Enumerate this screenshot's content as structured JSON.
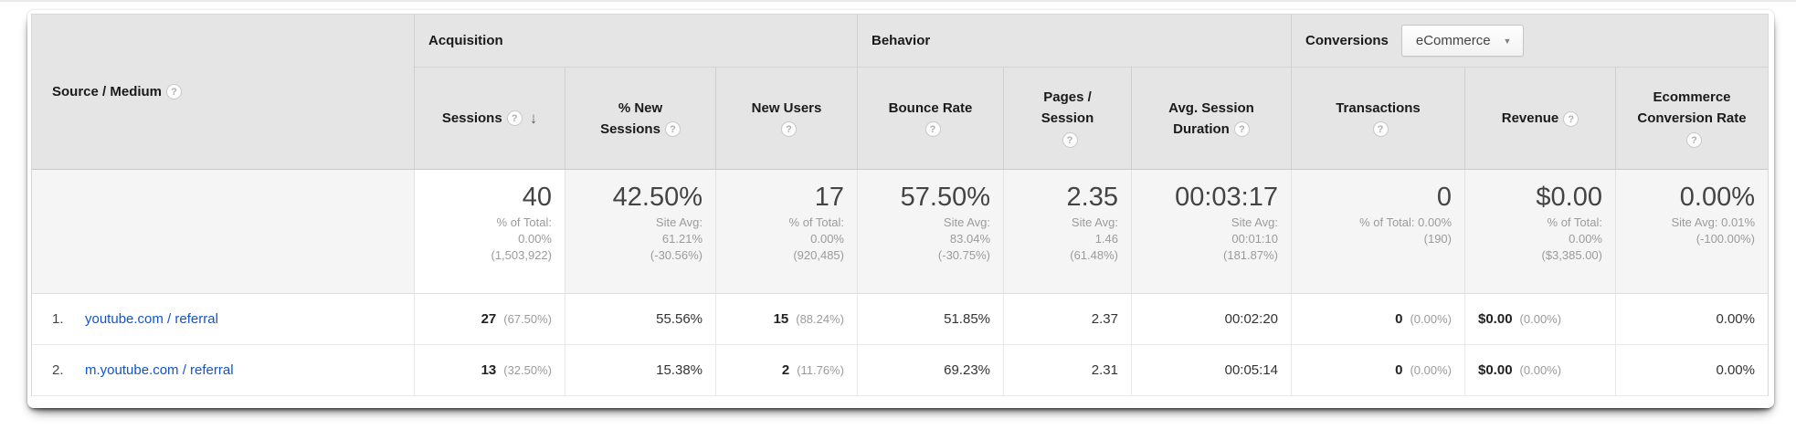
{
  "icons": {
    "help": "?",
    "sort_descending": "↓",
    "dropdown_arrow": "▼"
  },
  "colors": {
    "link": "#1155cc",
    "header_bg": "#e5e5e5",
    "summary_bg": "#f5f5f5",
    "secondary_text": "#9b9b9b"
  },
  "groups": {
    "acquisition": "Acquisition",
    "behavior": "Behavior",
    "conversions": "Conversions"
  },
  "conversions_selector": {
    "value": "eCommerce"
  },
  "columns": {
    "source": "Source / Medium",
    "sessions": "Sessions",
    "new_sessions": "% New Sessions",
    "new_users": "New Users",
    "bounce": "Bounce Rate",
    "pages": "Pages / Session",
    "duration": "Avg. Session Duration",
    "transactions": "Transactions",
    "revenue": "Revenue",
    "ecommerce_rate": "Ecommerce Conversion Rate"
  },
  "summary": {
    "sessions": {
      "value": "40",
      "sub": "% of Total:\n0.00%\n(1,503,922)"
    },
    "new_sessions": {
      "value": "42.50%",
      "sub": "Site Avg:\n61.21%\n(-30.56%)"
    },
    "new_users": {
      "value": "17",
      "sub": "% of Total:\n0.00%\n(920,485)"
    },
    "bounce": {
      "value": "57.50%",
      "sub": "Site Avg:\n83.04%\n(-30.75%)"
    },
    "pages": {
      "value": "2.35",
      "sub": "Site Avg:\n1.46\n(61.48%)"
    },
    "duration": {
      "value": "00:03:17",
      "sub": "Site Avg:\n00:01:10\n(181.87%)"
    },
    "transactions": {
      "value": "0",
      "sub": "% of Total: 0.00%\n(190)"
    },
    "revenue": {
      "value": "$0.00",
      "sub": "% of Total:\n0.00%\n($3,385.00)"
    },
    "ecommerce_rate": {
      "value": "0.00%",
      "sub": "Site Avg: 0.01%\n(-100.00%)"
    }
  },
  "rows": [
    {
      "index": "1.",
      "source": "youtube.com / referral",
      "sessions": "27",
      "sessions_pct": "(67.50%)",
      "new_sessions": "55.56%",
      "new_users": "15",
      "new_users_pct": "(88.24%)",
      "bounce": "51.85%",
      "pages": "2.37",
      "duration": "00:02:20",
      "transactions": "0",
      "transactions_pct": "(0.00%)",
      "revenue": "$0.00",
      "revenue_pct": "(0.00%)",
      "ecommerce_rate": "0.00%"
    },
    {
      "index": "2.",
      "source": "m.youtube.com / referral",
      "sessions": "13",
      "sessions_pct": "(32.50%)",
      "new_sessions": "15.38%",
      "new_users": "2",
      "new_users_pct": "(11.76%)",
      "bounce": "69.23%",
      "pages": "2.31",
      "duration": "00:05:14",
      "transactions": "0",
      "transactions_pct": "(0.00%)",
      "revenue": "$0.00",
      "revenue_pct": "(0.00%)",
      "ecommerce_rate": "0.00%"
    }
  ]
}
